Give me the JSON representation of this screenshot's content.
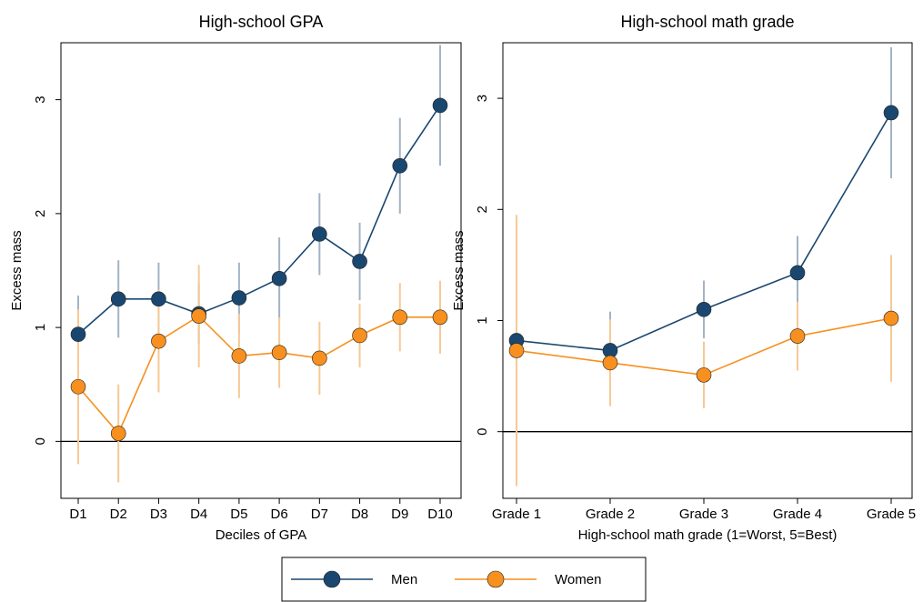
{
  "chart_data": [
    {
      "type": "line",
      "title": "High-school GPA",
      "x_label": "Deciles of GPA",
      "y_label": "Excess mass",
      "categories": [
        "D1",
        "D2",
        "D3",
        "D4",
        "D5",
        "D6",
        "D7",
        "D8",
        "D9",
        "D10"
      ],
      "ylim": [
        -0.5,
        3.5
      ],
      "yticks": [
        0,
        1,
        2,
        3
      ],
      "series": [
        {
          "name": "Men",
          "color": "#1a476f",
          "error_color": "#a3b3c6",
          "values": [
            0.94,
            1.25,
            1.25,
            1.12,
            1.26,
            1.43,
            1.82,
            1.58,
            2.42,
            2.95
          ],
          "errors": [
            0.34,
            0.34,
            0.32,
            0.27,
            0.31,
            0.36,
            0.36,
            0.34,
            0.42,
            0.53
          ]
        },
        {
          "name": "Women",
          "color": "#f7901e",
          "error_color": "#f6c995",
          "values": [
            0.48,
            0.07,
            0.88,
            1.1,
            0.75,
            0.78,
            0.73,
            0.93,
            1.09,
            1.09
          ],
          "errors": [
            0.68,
            0.43,
            0.45,
            0.45,
            0.37,
            0.31,
            0.32,
            0.28,
            0.3,
            0.32
          ]
        }
      ]
    },
    {
      "type": "line",
      "title": "High-school math grade",
      "x_label": "High-school math grade (1=Worst, 5=Best)",
      "y_label": "Excess mass",
      "categories": [
        "Grade 1",
        "Grade 2",
        "Grade 3",
        "Grade 4",
        "Grade 5"
      ],
      "ylim": [
        -0.6,
        3.5
      ],
      "yticks": [
        0,
        1,
        2,
        3
      ],
      "series": [
        {
          "color": "#1a476f",
          "error_color": "#a3b3c6",
          "values": [
            0.82,
            0.73,
            1.1,
            1.43,
            2.87
          ],
          "errors": [
            0.81,
            0.35,
            0.26,
            0.33,
            0.59
          ]
        },
        {
          "color": "#f7901e",
          "error_color": "#f6c995",
          "values": [
            0.73,
            0.62,
            0.51,
            0.86,
            1.02
          ],
          "errors": [
            1.22,
            0.39,
            0.3,
            0.31,
            0.57
          ]
        }
      ]
    }
  ]
}
